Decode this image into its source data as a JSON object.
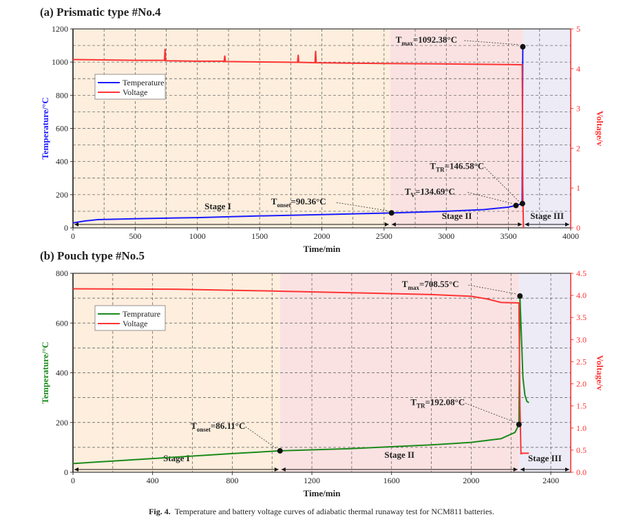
{
  "chart_data": [
    {
      "type": "line",
      "panel_title": "(a) Prismatic type #No.4",
      "xlabel": "Time/min",
      "ylabel": "Temperature/°C",
      "y2label": "Voltage/v",
      "xlim": [
        0,
        4000
      ],
      "ylim": [
        0,
        1200
      ],
      "y2lim": [
        0,
        5
      ],
      "xticks": [
        0,
        500,
        1000,
        1500,
        2000,
        2500,
        3000,
        3500,
        4000
      ],
      "yticks": [
        0,
        200,
        400,
        600,
        800,
        1000,
        1200
      ],
      "y2ticks": [
        0,
        1,
        2,
        3,
        4,
        5
      ],
      "grid": true,
      "legend_position": "upper-left",
      "series": [
        {
          "name": "Temperature",
          "axis": "left",
          "color": "#1a1aff",
          "x": [
            0,
            100,
            200,
            500,
            1000,
            1500,
            2000,
            2560,
            3000,
            3300,
            3500,
            3560,
            3610,
            3612,
            3615
          ],
          "y": [
            30,
            42,
            50,
            55,
            62,
            72,
            80,
            90,
            100,
            110,
            125,
            135,
            146.58,
            600,
            1092.38
          ]
        },
        {
          "name": "Voltage",
          "axis": "right",
          "color": "#ff3333",
          "x": [
            0,
            500,
            735,
            740,
            745,
            1000,
            1215,
            1220,
            1225,
            1500,
            1805,
            1810,
            1815,
            1945,
            1950,
            1955,
            2500,
            3000,
            3610,
            3615,
            3620
          ],
          "y": [
            4.23,
            4.21,
            4.21,
            4.5,
            4.2,
            4.19,
            4.19,
            4.33,
            4.18,
            4.17,
            4.16,
            4.35,
            4.16,
            4.15,
            4.45,
            4.15,
            4.13,
            4.12,
            4.1,
            1,
            0
          ]
        }
      ],
      "stages": [
        {
          "label": "Stage I",
          "from": 0,
          "to": 2550,
          "color": "#fdeedd"
        },
        {
          "label": "Stage II",
          "from": 2550,
          "to": 3620,
          "color": "#fbe2e2"
        },
        {
          "label": "Stage III",
          "from": 3620,
          "to": 4000,
          "color": "#ecebf6"
        }
      ],
      "points": [
        {
          "label": "T",
          "sub": "onset",
          "value": "=90.36°C",
          "x": 2560,
          "y": 90.36
        },
        {
          "label": "T",
          "sub": "V",
          "value": "=134.69°C",
          "x": 3560,
          "y": 134.69
        },
        {
          "label": "T",
          "sub": "TR",
          "value": "=146.58°C",
          "x": 3612,
          "y": 146.58
        },
        {
          "label": "T",
          "sub": "max",
          "value": "=1092.38°C",
          "x": 3615,
          "y": 1092.38
        }
      ]
    },
    {
      "type": "line",
      "panel_title": "(b) Pouch type #No.5",
      "xlabel": "Time/min",
      "ylabel": "Temperature/°C",
      "y2label": "Voltage/v",
      "xlim": [
        0,
        2500
      ],
      "ylim": [
        0,
        800
      ],
      "y2lim": [
        0,
        4.5
      ],
      "xticks": [
        0,
        400,
        800,
        1200,
        1600,
        2000,
        2400
      ],
      "yticks": [
        0,
        200,
        400,
        600,
        800
      ],
      "y2ticks": [
        0.0,
        0.5,
        1.0,
        1.5,
        2.0,
        2.5,
        3.0,
        3.5,
        4.0,
        4.5
      ],
      "grid": true,
      "legend_position": "upper-left",
      "series": [
        {
          "name": "Temprature",
          "axis": "left",
          "color": "#1a8a1a",
          "x": [
            0,
            100,
            200,
            400,
            600,
            800,
            1040,
            1400,
            1800,
            2000,
            2150,
            2220,
            2240,
            2243,
            2245,
            2250,
            2260,
            2270,
            2280,
            2290
          ],
          "y": [
            35,
            40,
            45,
            55,
            65,
            75,
            86.11,
            95,
            110,
            120,
            135,
            160,
            192.08,
            500,
            708.55,
            600,
            380,
            310,
            285,
            280
          ]
        },
        {
          "name": "Voltage",
          "axis": "right",
          "color": "#ff3333",
          "x": [
            0,
            500,
            1000,
            1500,
            1800,
            2000,
            2080,
            2150,
            2240,
            2245,
            2250,
            2260,
            2290
          ],
          "y": [
            4.15,
            4.14,
            4.1,
            4.05,
            4.02,
            3.98,
            3.92,
            3.84,
            3.83,
            1.5,
            0.42,
            0.43,
            0.43
          ]
        }
      ],
      "stages": [
        {
          "label": "Stage I",
          "from": 0,
          "to": 1040,
          "color": "#fdeedd"
        },
        {
          "label": "Stage II",
          "from": 1040,
          "to": 2240,
          "color": "#fbe2e2"
        },
        {
          "label": "Stage III",
          "from": 2240,
          "to": 2500,
          "color": "#ecebf6"
        }
      ],
      "points": [
        {
          "label": "T",
          "sub": "onset",
          "value": "=86.11°C",
          "x": 1040,
          "y": 86.11
        },
        {
          "label": "T",
          "sub": "TR",
          "value": "=192.08°C",
          "x": 2240,
          "y": 192.08
        },
        {
          "label": "T",
          "sub": "max",
          "value": "=708.55°C",
          "x": 2245,
          "y": 708.55
        }
      ]
    }
  ],
  "caption": {
    "label": "Fig. 4.",
    "text": "Temperature and battery voltage curves of adiabatic thermal runaway test for NCM811 batteries."
  }
}
